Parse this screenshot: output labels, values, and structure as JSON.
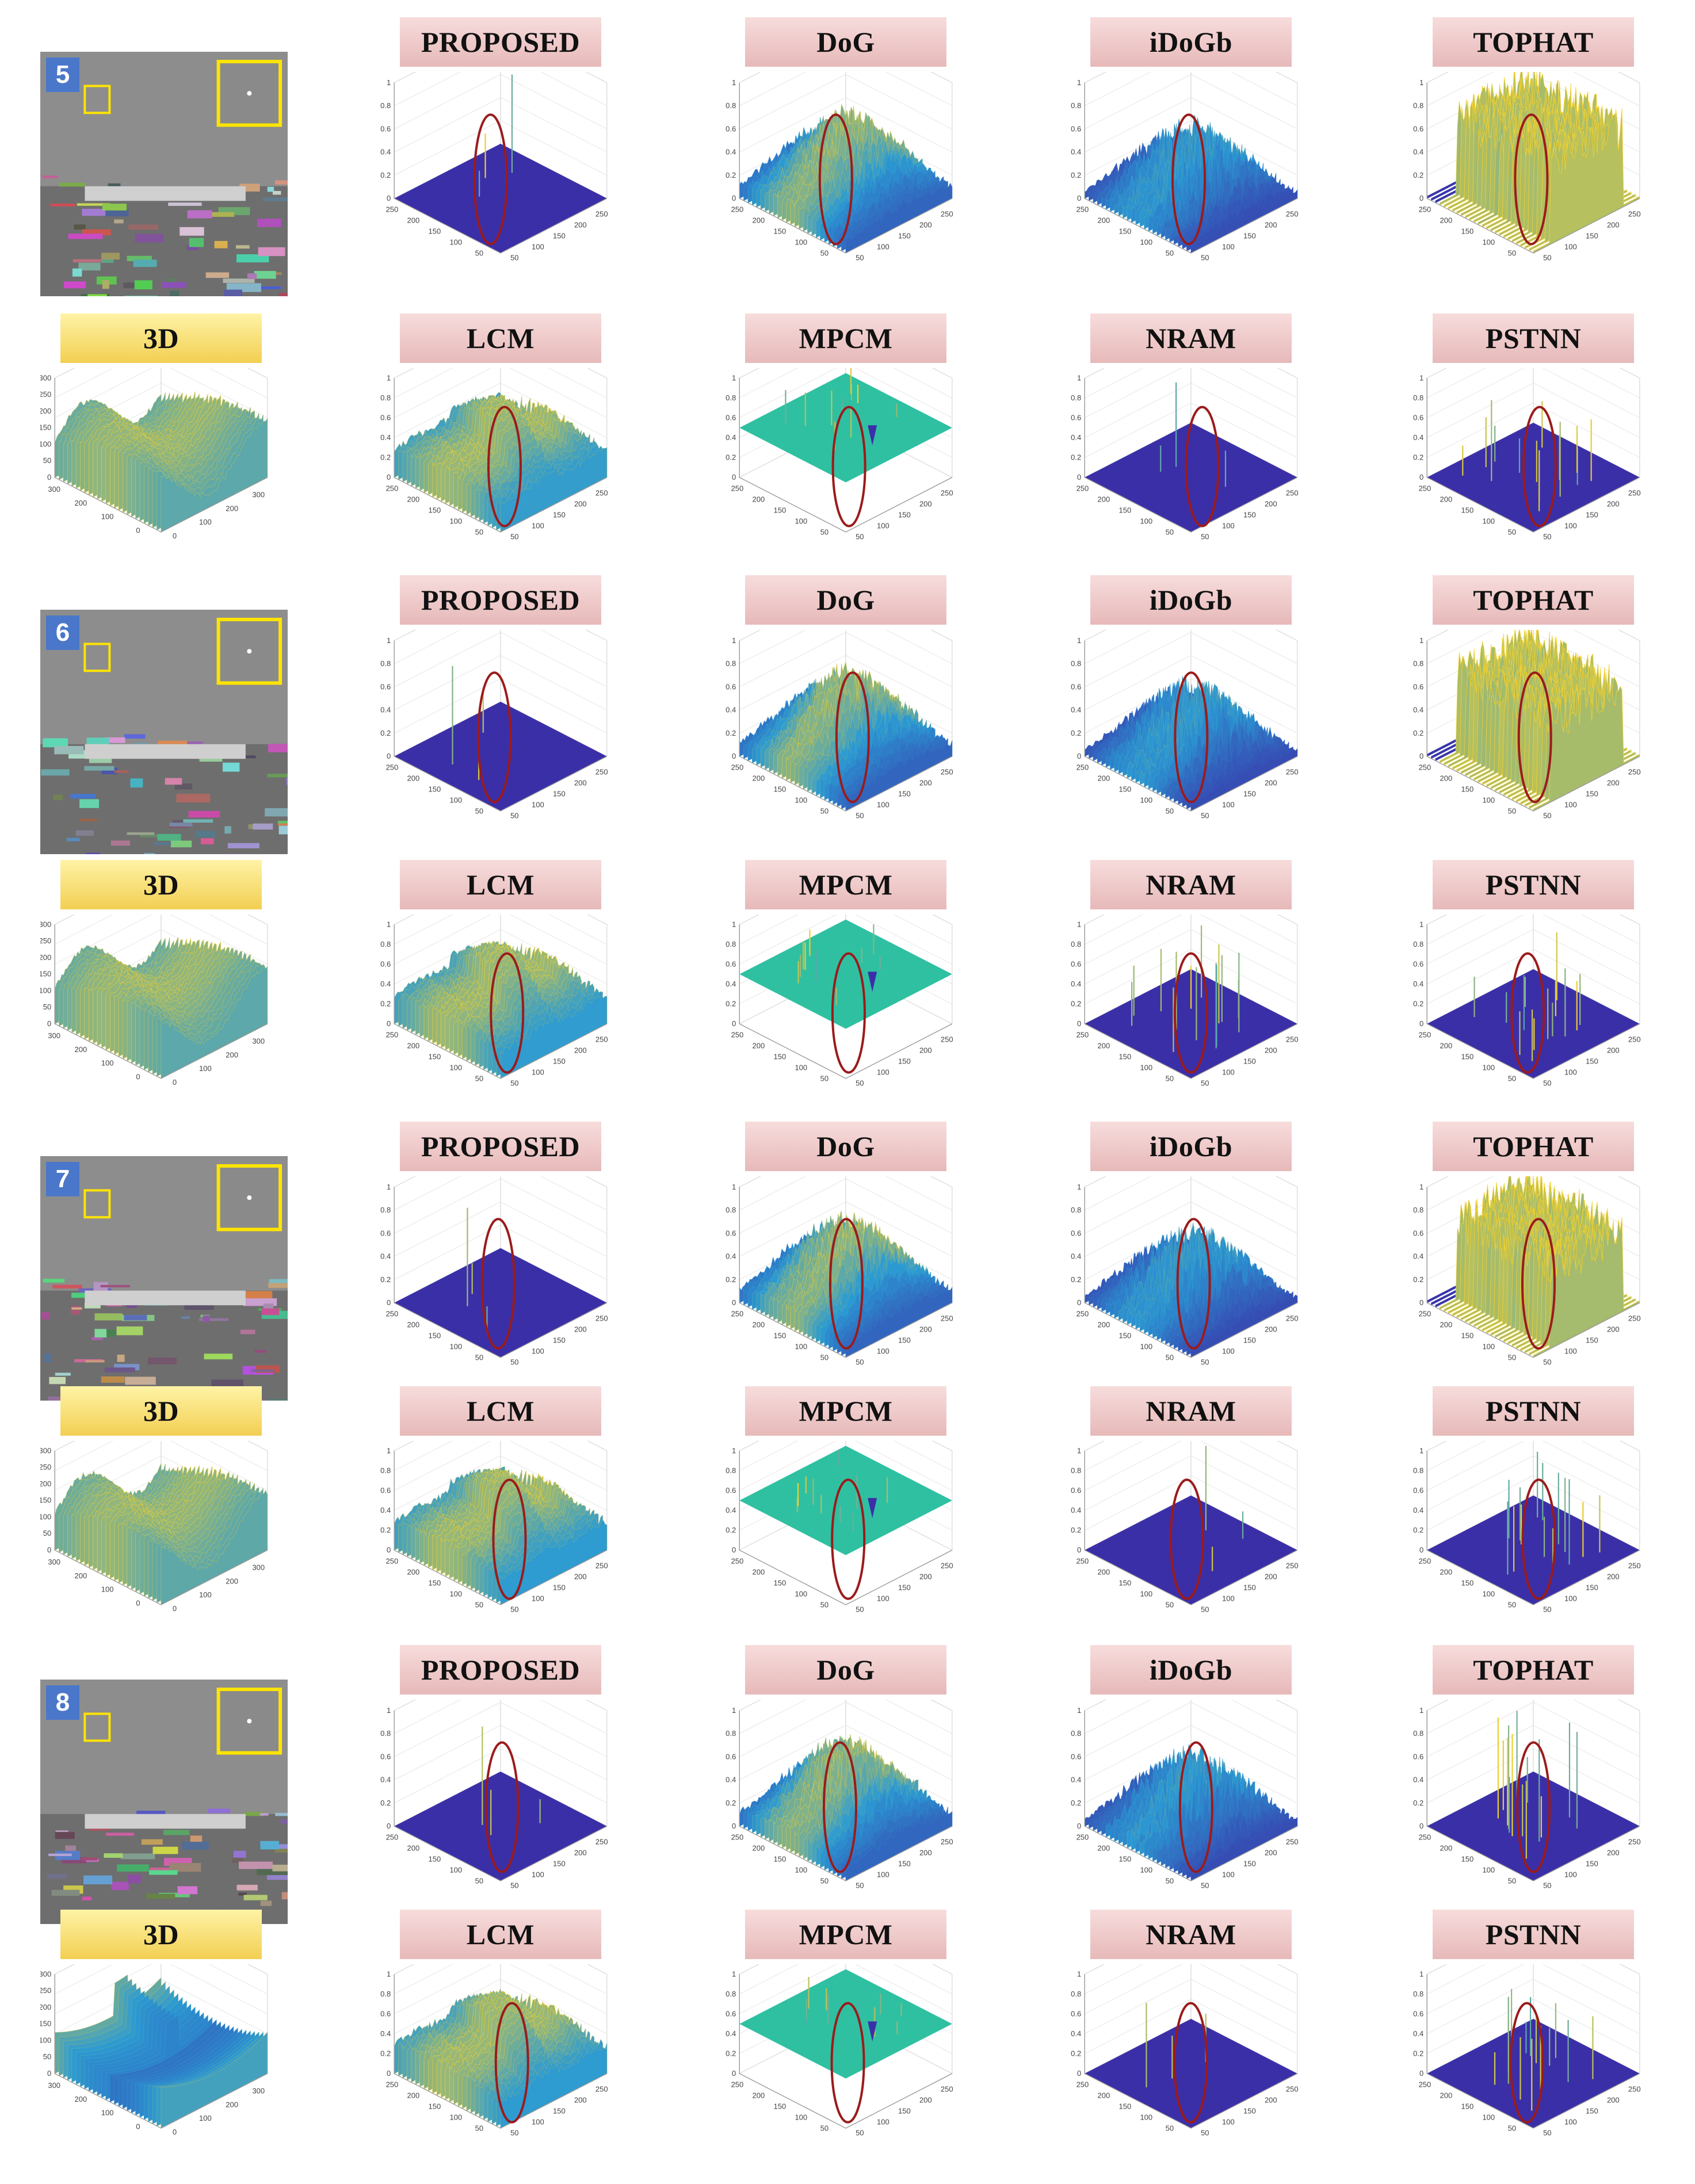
{
  "colors": {
    "surface_low": "#3b2fa8",
    "surface_mid": "#2b9bd4",
    "surface_high": "#f5d12a",
    "mpcm_plane": "#2fc0a2",
    "ellipse": "#9b1b1b",
    "badge": "#4a77c9",
    "label_pink": "#ecc4c4",
    "label_yellow": "#f6df70",
    "inset_box": "#ffe400"
  },
  "groups": [
    {
      "number": "5",
      "row1": [
        {
          "label": "PROPOSED",
          "kind": "flat"
        },
        {
          "label": "DoG",
          "kind": "rough"
        },
        {
          "label": "iDoGb",
          "kind": "spiky"
        },
        {
          "label": "TOPHAT",
          "kind": "wall"
        }
      ],
      "row2": [
        {
          "label": "3D",
          "kind": "terrain"
        },
        {
          "label": "LCM",
          "kind": "blocky"
        },
        {
          "label": "MPCM",
          "kind": "plane"
        },
        {
          "label": "NRAM",
          "kind": "flat"
        },
        {
          "label": "PSTNN",
          "kind": "sticks"
        }
      ]
    },
    {
      "number": "6",
      "row1": [
        {
          "label": "PROPOSED",
          "kind": "flat"
        },
        {
          "label": "DoG",
          "kind": "rough"
        },
        {
          "label": "iDoGb",
          "kind": "spiky"
        },
        {
          "label": "TOPHAT",
          "kind": "wall"
        }
      ],
      "row2": [
        {
          "label": "3D",
          "kind": "terrain"
        },
        {
          "label": "LCM",
          "kind": "blocky"
        },
        {
          "label": "MPCM",
          "kind": "plane"
        },
        {
          "label": "NRAM",
          "kind": "sticks"
        },
        {
          "label": "PSTNN",
          "kind": "sticks"
        }
      ]
    },
    {
      "number": "7",
      "row1": [
        {
          "label": "PROPOSED",
          "kind": "flat"
        },
        {
          "label": "DoG",
          "kind": "rough"
        },
        {
          "label": "iDoGb",
          "kind": "spiky"
        },
        {
          "label": "TOPHAT",
          "kind": "wall"
        }
      ],
      "row2": [
        {
          "label": "3D",
          "kind": "terrain"
        },
        {
          "label": "LCM",
          "kind": "blocky"
        },
        {
          "label": "MPCM",
          "kind": "plane"
        },
        {
          "label": "NRAM",
          "kind": "flat"
        },
        {
          "label": "PSTNN",
          "kind": "sticks"
        }
      ]
    },
    {
      "number": "8",
      "row1": [
        {
          "label": "PROPOSED",
          "kind": "flat"
        },
        {
          "label": "DoG",
          "kind": "rough"
        },
        {
          "label": "iDoGb",
          "kind": "spiky"
        },
        {
          "label": "TOPHAT",
          "kind": "sticks"
        }
      ],
      "row2": [
        {
          "label": "3D",
          "kind": "bowl"
        },
        {
          "label": "LCM",
          "kind": "blocky"
        },
        {
          "label": "MPCM",
          "kind": "plane"
        },
        {
          "label": "NRAM",
          "kind": "flat"
        },
        {
          "label": "PSTNN",
          "kind": "sticks"
        }
      ]
    }
  ]
}
